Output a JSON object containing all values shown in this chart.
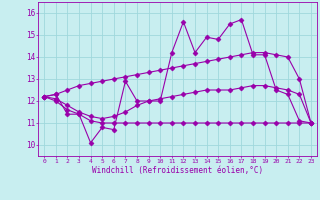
{
  "xlabel": "Windchill (Refroidissement éolien,°C)",
  "background_color": "#c8eef0",
  "grid_color": "#a0d8dc",
  "line_color": "#9900aa",
  "x_values": [
    0,
    1,
    2,
    3,
    4,
    5,
    6,
    7,
    8,
    9,
    10,
    11,
    12,
    13,
    14,
    15,
    16,
    17,
    18,
    19,
    20,
    21,
    22,
    23
  ],
  "series1": [
    12.2,
    12.3,
    11.4,
    11.4,
    10.1,
    10.8,
    10.7,
    12.9,
    12.0,
    12.0,
    12.0,
    14.2,
    15.6,
    14.2,
    14.9,
    14.8,
    15.5,
    15.7,
    14.1,
    14.1,
    12.5,
    12.3,
    11.1,
    11.0
  ],
  "series2": [
    12.2,
    12.3,
    12.5,
    12.7,
    12.8,
    12.9,
    13.0,
    13.1,
    13.2,
    13.3,
    13.4,
    13.5,
    13.6,
    13.7,
    13.8,
    13.9,
    14.0,
    14.1,
    14.2,
    14.2,
    14.1,
    14.0,
    13.0,
    11.0
  ],
  "series3": [
    12.2,
    12.0,
    11.6,
    11.4,
    11.1,
    11.0,
    11.0,
    11.0,
    11.0,
    11.0,
    11.0,
    11.0,
    11.0,
    11.0,
    11.0,
    11.0,
    11.0,
    11.0,
    11.0,
    11.0,
    11.0,
    11.0,
    11.0,
    11.0
  ],
  "series4": [
    12.2,
    12.1,
    11.8,
    11.5,
    11.3,
    11.2,
    11.3,
    11.5,
    11.8,
    12.0,
    12.1,
    12.2,
    12.3,
    12.4,
    12.5,
    12.5,
    12.5,
    12.6,
    12.7,
    12.7,
    12.6,
    12.5,
    12.3,
    11.0
  ],
  "ylim": [
    9.5,
    16.5
  ],
  "yticks": [
    10,
    11,
    12,
    13,
    14,
    15,
    16
  ],
  "xlim": [
    -0.5,
    23.5
  ],
  "figwidth": 3.2,
  "figheight": 2.0,
  "dpi": 100
}
